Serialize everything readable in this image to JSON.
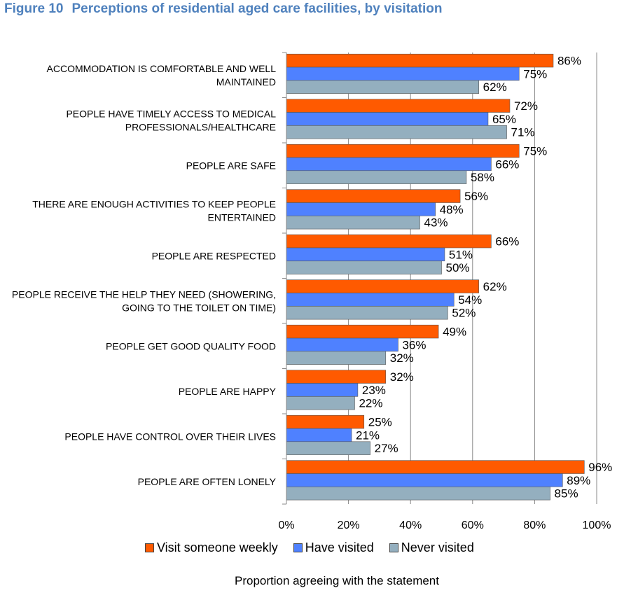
{
  "figure": {
    "number": "Figure 10",
    "title": "Perceptions of residential aged care facilities, by visitation"
  },
  "chart_data": {
    "type": "bar",
    "orientation": "horizontal",
    "categories": [
      [
        "ACCOMMODATION IS COMFORTABLE AND WELL",
        "MAINTAINED"
      ],
      [
        "PEOPLE HAVE TIMELY ACCESS TO MEDICAL",
        "PROFESSIONALS/HEALTHCARE"
      ],
      [
        "PEOPLE ARE SAFE"
      ],
      [
        "THERE ARE ENOUGH ACTIVITIES TO KEEP PEOPLE",
        "ENTERTAINED"
      ],
      [
        "PEOPLE ARE RESPECTED"
      ],
      [
        "PEOPLE RECEIVE THE HELP THEY NEED (SHOWERING,",
        "GOING TO THE TOILET ON TIME)"
      ],
      [
        "PEOPLE GET GOOD QUALITY FOOD"
      ],
      [
        "PEOPLE ARE HAPPY"
      ],
      [
        "PEOPLE HAVE CONTROL OVER THEIR LIVES"
      ],
      [
        "PEOPLE ARE OFTEN LONELY"
      ]
    ],
    "series": [
      {
        "name": "Visit someone weekly",
        "color": "#ff5a00",
        "values": [
          86,
          72,
          75,
          56,
          66,
          62,
          49,
          32,
          25,
          96
        ],
        "labels": [
          "86%",
          "72%",
          "75%",
          "56%",
          "66%",
          "62%",
          "49%",
          "32%",
          "25%",
          "96%"
        ]
      },
      {
        "name": "Have visited",
        "color": "#4f81ff",
        "values": [
          75,
          65,
          66,
          48,
          51,
          54,
          36,
          23,
          21,
          89
        ],
        "labels": [
          "75%",
          "65%",
          "66%",
          "48%",
          "51%",
          "54%",
          "36%",
          "23%",
          "21%",
          "89%"
        ]
      },
      {
        "name": "Never visited",
        "color": "#94afbf",
        "values": [
          62,
          71,
          58,
          43,
          50,
          52,
          32,
          22,
          27,
          85
        ],
        "labels": [
          "62%",
          "71%",
          "58%",
          "43%",
          "50%",
          "52%",
          "32%",
          "22%",
          "27%",
          "85%"
        ]
      }
    ],
    "xlim": [
      0,
      100
    ],
    "xticks": [
      "0%",
      "20%",
      "40%",
      "60%",
      "80%",
      "100%"
    ],
    "xlabel": "Proportion agreeing with the statement",
    "grid": "vertical",
    "legend": "bottom"
  }
}
